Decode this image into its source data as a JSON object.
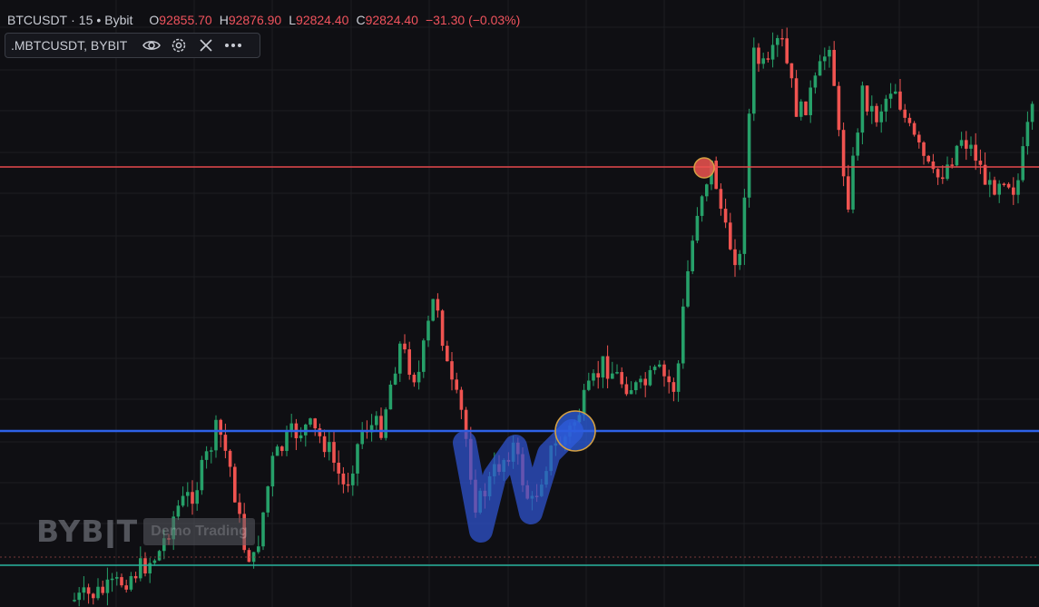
{
  "legend": {
    "symbol": "BTCUSDT",
    "interval": "15",
    "exchange": "Bybit",
    "o_label": "O",
    "o_value": "92855.70",
    "h_label": "H",
    "h_value": "92876.90",
    "l_label": "L",
    "l_value": "92824.40",
    "c_label": "C",
    "c_value": "92824.40",
    "change": "−31.30 (−0.03%)"
  },
  "indicator": {
    "name": ".MBTCUSDT, BYBIT",
    "icons": [
      "eye-icon",
      "gear-icon",
      "close-icon",
      "more-icon"
    ]
  },
  "watermark": {
    "logo": "BYBǀT",
    "badge": "Demo Trading"
  },
  "colors": {
    "background": "#0f0f13",
    "up": "#26a069",
    "down": "#ef5350",
    "resistance_line": "#e5484d",
    "support_line": "#2e62e8",
    "bottom_line": "#27b39d",
    "w_pattern": "#2f55d4"
  },
  "chart_data": {
    "type": "candlestick",
    "symbol": "BTCUSDT",
    "interval": "15",
    "candles": [
      [
        1,
        0.05,
        0.05,
        0.03,
        0.06
      ],
      [
        1,
        0.06,
        0.07,
        0.05,
        0.09
      ],
      [
        1,
        0.07,
        0.06,
        0.04,
        0.08
      ],
      [
        1,
        0.06,
        0.09,
        0.05,
        0.1
      ],
      [
        1,
        0.09,
        0.08,
        0.07,
        0.11
      ],
      [
        1,
        0.08,
        0.11,
        0.07,
        0.12
      ],
      [
        1,
        0.11,
        0.1,
        0.09,
        0.13
      ],
      [
        1,
        0.1,
        0.12,
        0.09,
        0.14
      ],
      [
        1,
        0.12,
        0.11,
        0.1,
        0.13
      ],
      [
        1,
        0.11,
        0.14,
        0.1,
        0.16
      ],
      [
        1,
        0.14,
        0.12,
        0.11,
        0.16
      ],
      [
        1,
        0.12,
        0.16,
        0.11,
        0.18
      ],
      [
        1,
        0.16,
        0.15,
        0.13,
        0.18
      ],
      [
        1,
        0.15,
        0.18,
        0.14,
        0.21
      ],
      [
        1,
        0.18,
        0.17,
        0.15,
        0.2
      ],
      [
        1,
        0.17,
        0.2,
        0.16,
        0.24
      ]
    ],
    "horizontal_lines": [
      {
        "name": "resistance",
        "color": "#e5484d"
      },
      {
        "name": "support",
        "color": "#2e62e8"
      },
      {
        "name": "bottom",
        "color": "#27b39d"
      }
    ],
    "annotations": [
      "W pattern",
      "breakout circle",
      "retest circle"
    ]
  }
}
